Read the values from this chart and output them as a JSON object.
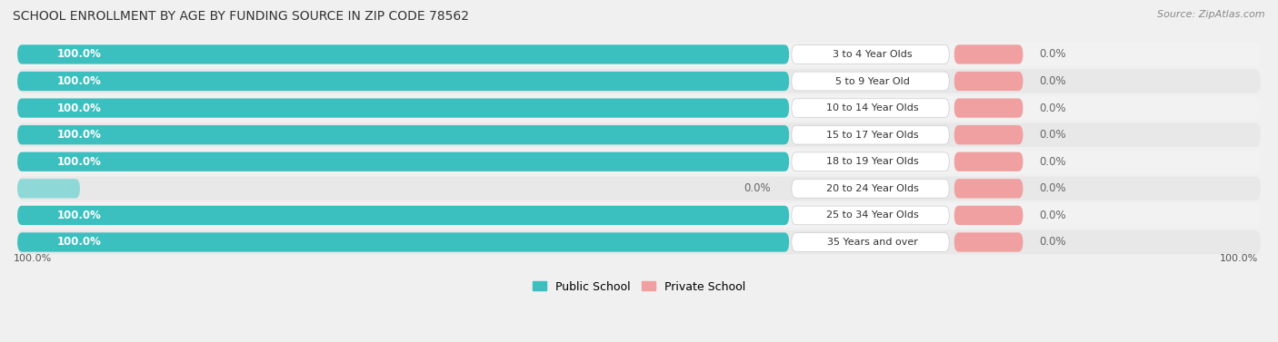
{
  "title": "SCHOOL ENROLLMENT BY AGE BY FUNDING SOURCE IN ZIP CODE 78562",
  "source": "Source: ZipAtlas.com",
  "categories": [
    "3 to 4 Year Olds",
    "5 to 9 Year Old",
    "10 to 14 Year Olds",
    "15 to 17 Year Olds",
    "18 to 19 Year Olds",
    "20 to 24 Year Olds",
    "25 to 34 Year Olds",
    "35 Years and over"
  ],
  "public_values": [
    100.0,
    100.0,
    100.0,
    100.0,
    100.0,
    0.0,
    100.0,
    100.0
  ],
  "private_values": [
    0.0,
    0.0,
    0.0,
    0.0,
    0.0,
    0.0,
    0.0,
    0.0
  ],
  "public_color": "#3BBFBF",
  "private_color": "#F0A0A0",
  "public_stub_color": "#8FD8D8",
  "row_bg_light": "#f0f0f0",
  "row_bg_dark": "#e2e2e2",
  "label_color_public": "#ffffff",
  "label_color_private": "#666666",
  "axis_label_left": "100.0%",
  "axis_label_right": "100.0%",
  "legend_public": "Public School",
  "legend_private": "Private School",
  "title_fontsize": 10,
  "source_fontsize": 8,
  "bar_label_fontsize": 8.5,
  "category_fontsize": 8,
  "axis_fontsize": 8,
  "background_color": "#f0f0f0"
}
